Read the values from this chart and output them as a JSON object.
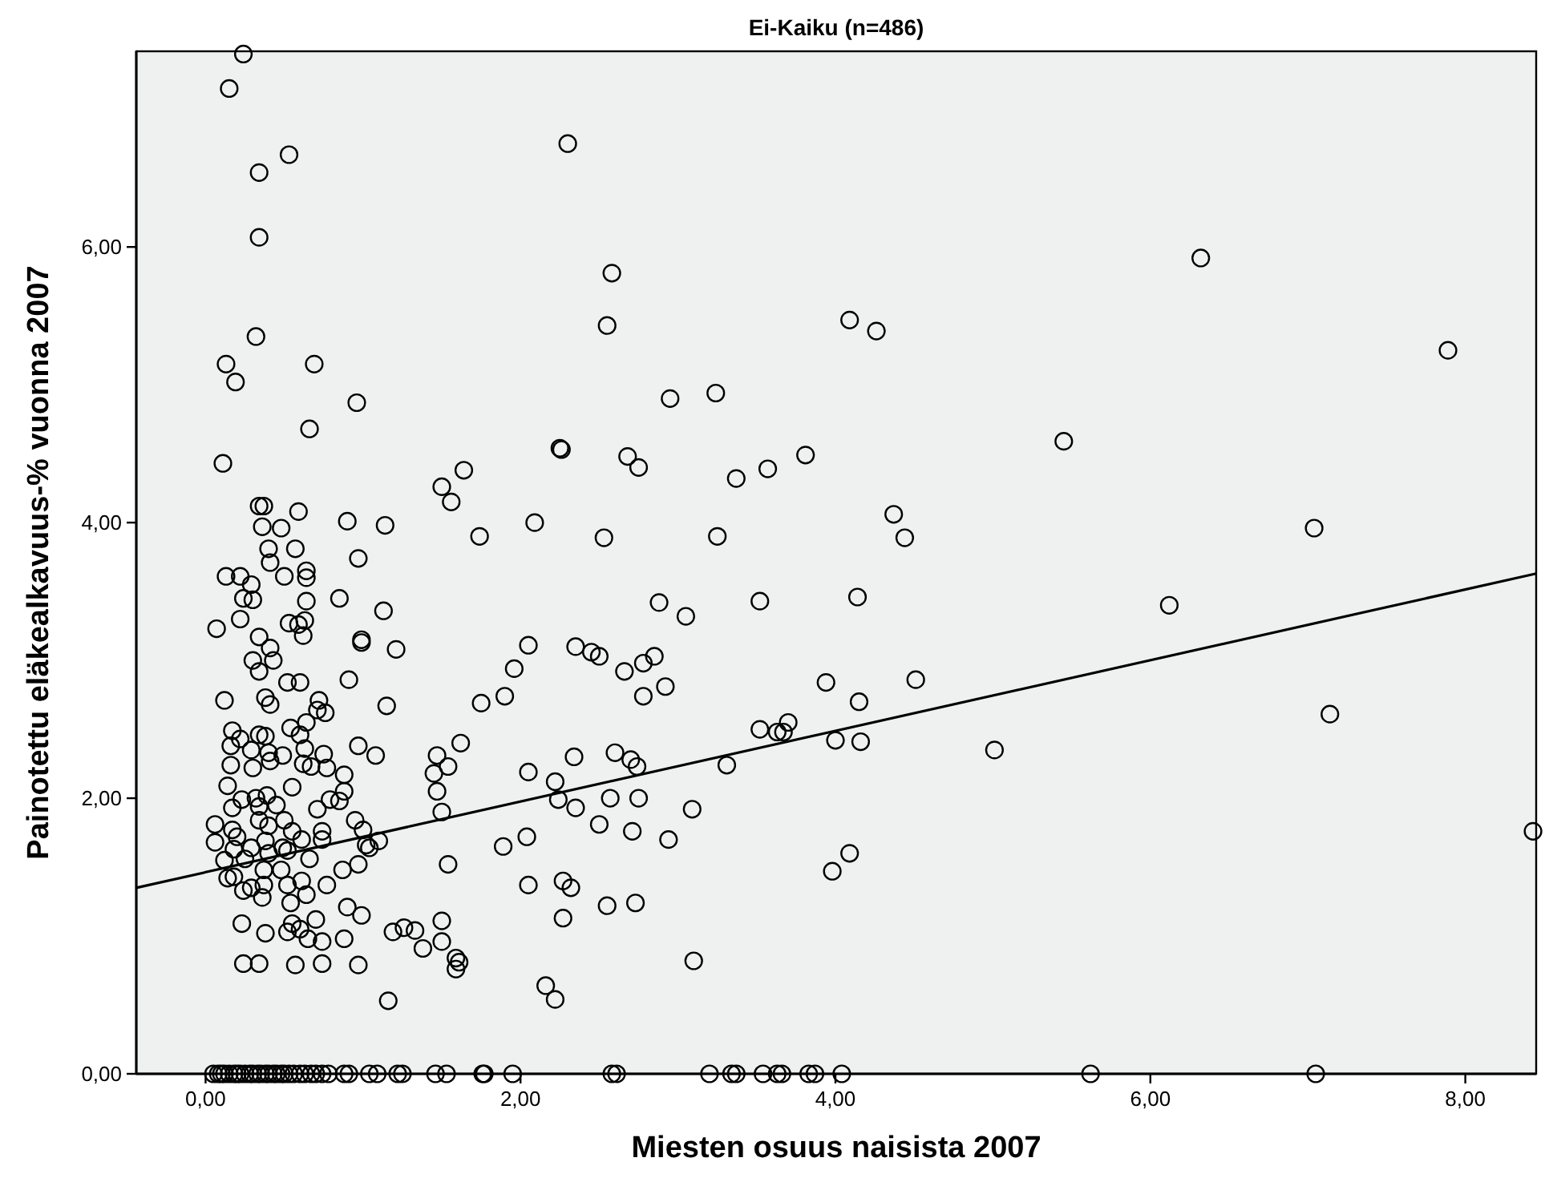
{
  "chart_data": {
    "type": "scatter",
    "title": "Ei-Kaiku (n=486)",
    "xlabel": "Miesten osuus naisista 2007",
    "ylabel": "Painotettu eläkealkavuus-% vuonna 2007",
    "xlim": [
      -0.44,
      8.45
    ],
    "ylim": [
      0,
      7.42
    ],
    "xticks": [
      {
        "value": 0,
        "label": "0,00"
      },
      {
        "value": 2,
        "label": "2,00"
      },
      {
        "value": 4,
        "label": "4,00"
      },
      {
        "value": 6,
        "label": "6,00"
      },
      {
        "value": 8,
        "label": "8,00"
      }
    ],
    "yticks": [
      {
        "value": 0,
        "label": "0,00"
      },
      {
        "value": 2,
        "label": "2,00"
      },
      {
        "value": 4,
        "label": "4,00"
      },
      {
        "value": 6,
        "label": "6,00"
      }
    ],
    "series": [
      {
        "marker": "circle",
        "color": "#000000",
        "x": [
          0.24,
          0.15,
          0.53,
          0.34,
          0.34,
          0.32,
          0.13,
          0.19,
          0.69,
          0.96,
          0.66,
          0.11,
          0.34,
          0.37,
          0.36,
          0.59,
          0.48,
          0.9,
          1.14,
          0.4,
          0.57,
          0.41,
          0.97,
          0.13,
          0.22,
          0.5,
          0.64,
          0.64,
          0.29,
          0.24,
          0.3,
          0.64,
          0.85,
          1.13,
          0.07,
          0.22,
          0.53,
          0.59,
          0.63,
          0.62,
          0.99,
          0.99,
          0.34,
          0.41,
          0.43,
          0.3,
          1.21,
          0.34,
          0.91,
          0.52,
          0.6,
          0.12,
          0.38,
          0.41,
          1.15,
          0.72,
          0.64,
          0.71,
          0.76,
          0.54,
          0.17,
          0.22,
          0.34,
          0.38,
          0.16,
          0.29,
          0.4,
          0.49,
          0.6,
          0.63,
          0.97,
          1.08,
          0.75,
          0.16,
          0.3,
          0.41,
          0.62,
          0.67,
          0.77,
          0.88,
          0.14,
          0.55,
          0.88,
          0.32,
          0.39,
          0.34,
          0.45,
          0.23,
          0.17,
          0.71,
          0.79,
          0.85,
          0.06,
          0.17,
          0.34,
          0.4,
          0.5,
          0.55,
          0.61,
          0.74,
          0.95,
          1.0,
          0.06,
          0.2,
          0.38,
          0.49,
          0.74,
          1.1,
          1.02,
          0.12,
          0.18,
          0.29,
          0.25,
          0.4,
          0.52,
          0.66,
          1.04,
          0.97,
          0.87,
          0.37,
          0.14,
          0.18,
          0.48,
          0.37,
          0.29,
          0.24,
          0.36,
          0.52,
          0.61,
          0.64,
          0.77,
          0.54,
          0.23,
          0.38,
          0.55,
          0.6,
          0.52,
          0.7,
          0.65,
          0.74,
          0.88,
          0.9,
          0.99,
          1.19,
          1.26,
          1.33,
          1.38,
          0.24,
          0.34,
          0.57,
          0.74,
          0.97,
          1.16,
          2.3,
          2.58,
          2.55,
          4.09,
          4.26,
          2.95,
          3.24,
          2.25,
          2.26,
          2.68,
          2.75,
          3.37,
          3.57,
          3.81,
          1.5,
          1.64,
          1.56,
          1.74,
          2.09,
          2.53,
          3.25,
          4.37,
          4.44,
          2.88,
          3.05,
          3.52,
          4.14,
          2.05,
          2.35,
          2.45,
          2.5,
          2.85,
          1.96,
          2.78,
          2.66,
          2.92,
          2.78,
          1.9,
          1.75,
          3.94,
          4.51,
          4.15,
          3.7,
          3.52,
          3.63,
          3.67,
          4.0,
          4.16,
          1.62,
          1.47,
          1.54,
          1.45,
          1.47,
          1.5,
          2.05,
          2.34,
          2.6,
          2.7,
          2.74,
          3.31,
          2.22,
          2.57,
          2.75,
          2.24,
          2.35,
          2.5,
          2.71,
          3.09,
          2.94,
          2.04,
          1.89,
          1.54,
          2.05,
          2.27,
          2.32,
          2.27,
          2.55,
          2.73,
          4.09,
          3.98,
          1.5,
          1.5,
          1.59,
          1.61,
          1.59,
          3.1,
          2.16,
          2.22,
          6.32,
          7.89,
          5.45,
          7.04,
          6.12,
          7.14,
          5.01,
          8.43,
          0.05,
          0.08,
          0.1,
          0.12,
          0.15,
          0.18,
          0.2,
          0.22,
          0.25,
          0.28,
          0.3,
          0.33,
          0.35,
          0.38,
          0.4,
          0.43,
          0.45,
          0.48,
          0.5,
          0.53,
          0.56,
          0.6,
          0.63,
          0.67,
          0.7,
          0.74,
          0.78,
          0.88,
          0.91,
          1.04,
          1.09,
          1.22,
          1.25,
          1.46,
          1.53,
          1.76,
          1.77,
          1.95,
          2.58,
          2.61,
          3.2,
          3.34,
          3.37,
          3.54,
          3.63,
          3.66,
          3.83,
          3.87,
          4.04,
          5.62,
          7.05
        ],
        "values": [
          7.4,
          7.15,
          6.67,
          6.54,
          6.07,
          5.35,
          5.15,
          5.02,
          5.15,
          4.87,
          4.68,
          4.43,
          4.12,
          4.12,
          3.97,
          4.08,
          3.96,
          4.01,
          3.98,
          3.81,
          3.81,
          3.71,
          3.74,
          3.61,
          3.61,
          3.61,
          3.65,
          3.6,
          3.55,
          3.45,
          3.44,
          3.43,
          3.45,
          3.36,
          3.23,
          3.3,
          3.27,
          3.26,
          3.29,
          3.18,
          3.15,
          3.13,
          3.17,
          3.09,
          3.0,
          3.0,
          3.08,
          2.92,
          2.86,
          2.84,
          2.84,
          2.71,
          2.73,
          2.68,
          2.67,
          2.71,
          2.55,
          2.64,
          2.62,
          2.51,
          2.49,
          2.43,
          2.46,
          2.45,
          2.38,
          2.35,
          2.33,
          2.31,
          2.46,
          2.36,
          2.38,
          2.31,
          2.32,
          2.24,
          2.22,
          2.27,
          2.25,
          2.23,
          2.22,
          2.17,
          2.09,
          2.08,
          2.05,
          2.0,
          2.02,
          1.94,
          1.95,
          1.99,
          1.93,
          1.92,
          1.99,
          1.98,
          1.81,
          1.77,
          1.84,
          1.8,
          1.84,
          1.76,
          1.7,
          1.76,
          1.84,
          1.77,
          1.68,
          1.72,
          1.69,
          1.64,
          1.7,
          1.69,
          1.66,
          1.55,
          1.63,
          1.64,
          1.56,
          1.6,
          1.62,
          1.56,
          1.64,
          1.52,
          1.48,
          1.48,
          1.42,
          1.43,
          1.48,
          1.37,
          1.35,
          1.33,
          1.28,
          1.37,
          1.4,
          1.3,
          1.37,
          1.24,
          1.09,
          1.02,
          1.09,
          1.05,
          1.03,
          1.12,
          0.98,
          0.96,
          0.98,
          1.21,
          1.15,
          1.03,
          1.06,
          1.04,
          0.91,
          0.8,
          0.8,
          0.79,
          0.8,
          0.79,
          0.53,
          6.75,
          5.81,
          5.43,
          5.47,
          5.39,
          4.9,
          4.94,
          4.54,
          4.53,
          4.48,
          4.4,
          4.32,
          4.39,
          4.49,
          4.26,
          4.38,
          4.15,
          3.9,
          4.0,
          3.89,
          3.9,
          4.06,
          3.89,
          3.42,
          3.32,
          3.43,
          3.46,
          3.11,
          3.1,
          3.06,
          3.03,
          3.03,
          2.94,
          2.98,
          2.92,
          2.81,
          2.74,
          2.74,
          2.69,
          2.84,
          2.86,
          2.7,
          2.55,
          2.5,
          2.48,
          2.48,
          2.42,
          2.41,
          2.4,
          2.31,
          2.23,
          2.18,
          2.05,
          1.9,
          2.19,
          2.3,
          2.33,
          2.28,
          2.23,
          2.24,
          2.12,
          2.0,
          2.0,
          1.99,
          1.93,
          1.81,
          1.76,
          1.92,
          1.7,
          1.72,
          1.65,
          1.52,
          1.37,
          1.4,
          1.35,
          1.13,
          1.22,
          1.24,
          1.6,
          1.47,
          1.11,
          0.96,
          0.84,
          0.81,
          0.76,
          0.82,
          0.64,
          0.54,
          5.92,
          5.25,
          4.59,
          3.96,
          3.4,
          2.61,
          2.35,
          1.76,
          0,
          0,
          0,
          0,
          0,
          0,
          0,
          0,
          0,
          0,
          0,
          0,
          0,
          0,
          0,
          0,
          0,
          0,
          0,
          0,
          0,
          0,
          0,
          0,
          0,
          0,
          0,
          0,
          0,
          0,
          0,
          0,
          0,
          0,
          0,
          0,
          0,
          0,
          0,
          0,
          0,
          0,
          0,
          0,
          0,
          0,
          0,
          0,
          0,
          0,
          0
        ]
      },
      {
        "type": "line",
        "color": "#000000",
        "x": [
          -0.44,
          8.45
        ],
        "values": [
          1.35,
          3.63
        ]
      }
    ]
  }
}
